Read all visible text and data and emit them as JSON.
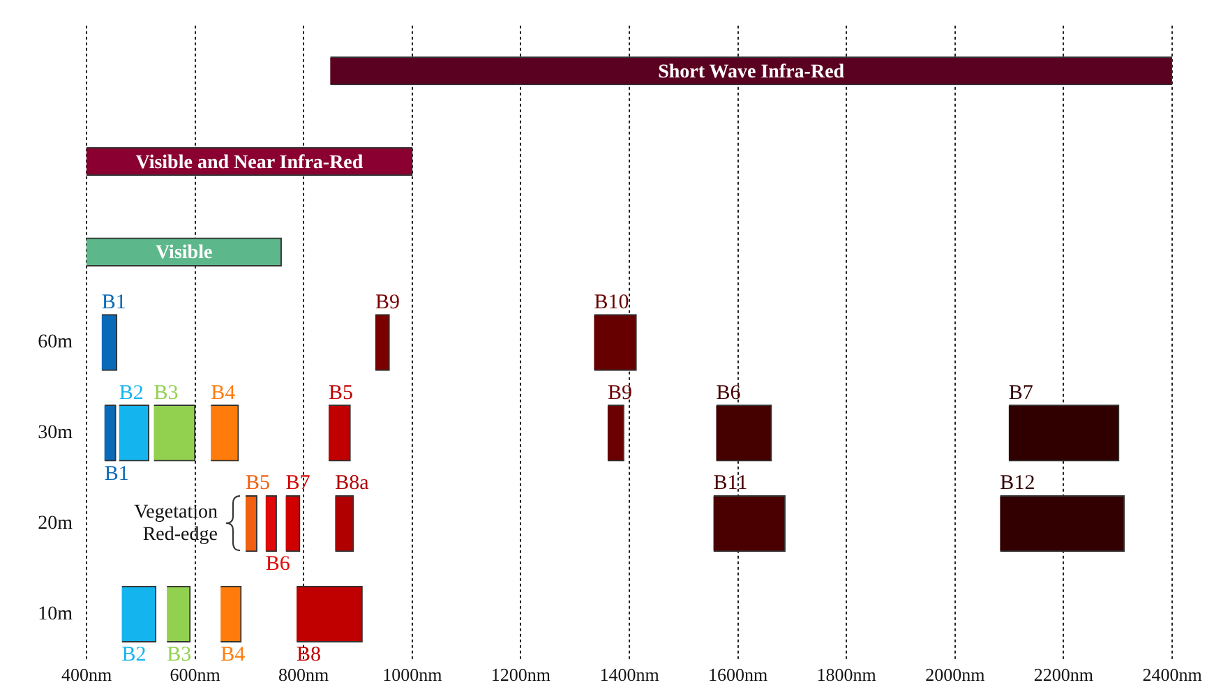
{
  "chart_data": {
    "type": "bar",
    "orientation": "horizontal",
    "legend": false,
    "grid": "x",
    "categories": [
      null,
      null,
      null,
      "60m",
      "30m",
      "20m",
      "10m"
    ],
    "xlim": [
      400,
      2400
    ],
    "xticks": [
      {
        "value": 400,
        "label": "400nm"
      },
      {
        "value": 600,
        "label": "600nm"
      },
      {
        "value": 800,
        "label": "800nm"
      },
      {
        "value": 1000,
        "label": "1000nm"
      },
      {
        "value": 1200,
        "label": "1200nm"
      },
      {
        "value": 1400,
        "label": "1400nm"
      },
      {
        "value": 1600,
        "label": "1600nm"
      },
      {
        "value": 1800,
        "label": "1800nm"
      },
      {
        "value": 2000,
        "label": "2000nm"
      },
      {
        "value": 2200,
        "label": "2200nm"
      },
      {
        "value": 2400,
        "label": "2400nm"
      }
    ],
    "series": [
      {
        "name": "Short Wave Infra-Red",
        "color": "#5a0020",
        "values": [
          1551,
          null,
          null,
          null,
          null,
          null,
          null
        ],
        "base": [
          849,
          null,
          null,
          null,
          null,
          null,
          null
        ]
      },
      {
        "name": "Visible and Near Infra-Red",
        "color": "#8a0030",
        "values": [
          null,
          600,
          null,
          null,
          null,
          null,
          null
        ],
        "base": [
          null,
          400,
          null,
          null,
          null,
          null,
          null
        ]
      },
      {
        "name": "Visible",
        "color": "#5cb88a",
        "values": [
          null,
          null,
          359,
          null,
          null,
          null,
          null
        ],
        "base": [
          null,
          null,
          400,
          null,
          null,
          null,
          null
        ]
      },
      {
        "name": "B1",
        "color": "#0b6ab8",
        "values": [
          null,
          null,
          null,
          28,
          null,
          null,
          null
        ],
        "base": [
          null,
          null,
          null,
          428,
          null,
          null,
          null
        ]
      },
      {
        "name": "B9",
        "color": "#7a0000",
        "values": [
          null,
          null,
          null,
          26,
          null,
          null,
          null
        ],
        "base": [
          null,
          null,
          null,
          932,
          null,
          null,
          null
        ]
      },
      {
        "name": "B10",
        "color": "#660000",
        "values": [
          null,
          null,
          null,
          78,
          null,
          null,
          null
        ],
        "base": [
          null,
          null,
          null,
          1335,
          null,
          null,
          null
        ]
      },
      {
        "name": "B1",
        "color": "#0b6ab8",
        "values": [
          null,
          null,
          null,
          null,
          21,
          null,
          null
        ],
        "base": [
          null,
          null,
          null,
          null,
          433,
          null,
          null
        ]
      },
      {
        "name": "B2",
        "color": "#14b4ee",
        "values": [
          null,
          null,
          null,
          null,
          55,
          null,
          null
        ],
        "base": [
          null,
          null,
          null,
          null,
          460,
          null,
          null
        ]
      },
      {
        "name": "B3",
        "color": "#92d050",
        "values": [
          null,
          null,
          null,
          null,
          76,
          null,
          null
        ],
        "base": [
          null,
          null,
          null,
          null,
          524,
          null,
          null
        ]
      },
      {
        "name": "B4",
        "color": "#ff7c0c",
        "values": [
          null,
          null,
          null,
          null,
          51,
          null,
          null
        ],
        "base": [
          null,
          null,
          null,
          null,
          629,
          null,
          null
        ]
      },
      {
        "name": "B5",
        "color": "#c00000",
        "values": [
          null,
          null,
          null,
          null,
          40,
          null,
          null
        ],
        "base": [
          null,
          null,
          null,
          null,
          846,
          null,
          null
        ]
      },
      {
        "name": "B9",
        "color": "#6a0000",
        "values": [
          null,
          null,
          null,
          null,
          30,
          null,
          null
        ],
        "base": [
          null,
          null,
          null,
          null,
          1360,
          null,
          null
        ]
      },
      {
        "name": "B6",
        "color": "#450000",
        "values": [
          null,
          null,
          null,
          null,
          102,
          null,
          null
        ],
        "base": [
          null,
          null,
          null,
          null,
          1560,
          null,
          null
        ]
      },
      {
        "name": "B7",
        "color": "#300000",
        "values": [
          null,
          null,
          null,
          null,
          203,
          null,
          null
        ],
        "base": [
          null,
          null,
          null,
          null,
          2099,
          null,
          null
        ]
      },
      {
        "name": "B5",
        "color": "#f06010",
        "values": [
          null,
          null,
          null,
          null,
          null,
          21,
          null
        ],
        "base": [
          null,
          null,
          null,
          null,
          null,
          693,
          null
        ]
      },
      {
        "name": "B6",
        "color": "#e00808",
        "values": [
          null,
          null,
          null,
          null,
          null,
          20,
          null
        ],
        "base": [
          null,
          null,
          null,
          null,
          null,
          730,
          null
        ]
      },
      {
        "name": "B7",
        "color": "#d00000",
        "values": [
          null,
          null,
          null,
          null,
          null,
          26,
          null
        ],
        "base": [
          null,
          null,
          null,
          null,
          null,
          767,
          null
        ]
      },
      {
        "name": "B8a",
        "color": "#b00000",
        "values": [
          null,
          null,
          null,
          null,
          null,
          34,
          null
        ],
        "base": [
          null,
          null,
          null,
          null,
          null,
          858,
          null
        ]
      },
      {
        "name": "B11",
        "color": "#4a0000",
        "values": [
          null,
          null,
          null,
          null,
          null,
          132,
          null
        ],
        "base": [
          null,
          null,
          null,
          null,
          null,
          1555,
          null
        ]
      },
      {
        "name": "B12",
        "color": "#320000",
        "values": [
          null,
          null,
          null,
          null,
          null,
          229,
          null
        ],
        "base": [
          null,
          null,
          null,
          null,
          null,
          2083,
          null
        ]
      },
      {
        "name": "B2",
        "color": "#14b4ee",
        "values": [
          null,
          null,
          null,
          null,
          null,
          null,
          63
        ],
        "base": [
          null,
          null,
          null,
          null,
          null,
          null,
          465
        ]
      },
      {
        "name": "B3",
        "color": "#92d050",
        "values": [
          null,
          null,
          null,
          null,
          null,
          null,
          43
        ],
        "base": [
          null,
          null,
          null,
          null,
          null,
          null,
          548
        ]
      },
      {
        "name": "B4",
        "color": "#ff7c0c",
        "values": [
          null,
          null,
          null,
          null,
          null,
          null,
          38
        ],
        "base": [
          null,
          null,
          null,
          null,
          null,
          null,
          647
        ]
      },
      {
        "name": "B8",
        "color": "#c00000",
        "values": [
          null,
          null,
          null,
          null,
          null,
          null,
          121
        ],
        "base": [
          null,
          null,
          null,
          null,
          null,
          null,
          787
        ]
      }
    ],
    "annotations": [
      "Vegetation Red-edge"
    ]
  }
}
